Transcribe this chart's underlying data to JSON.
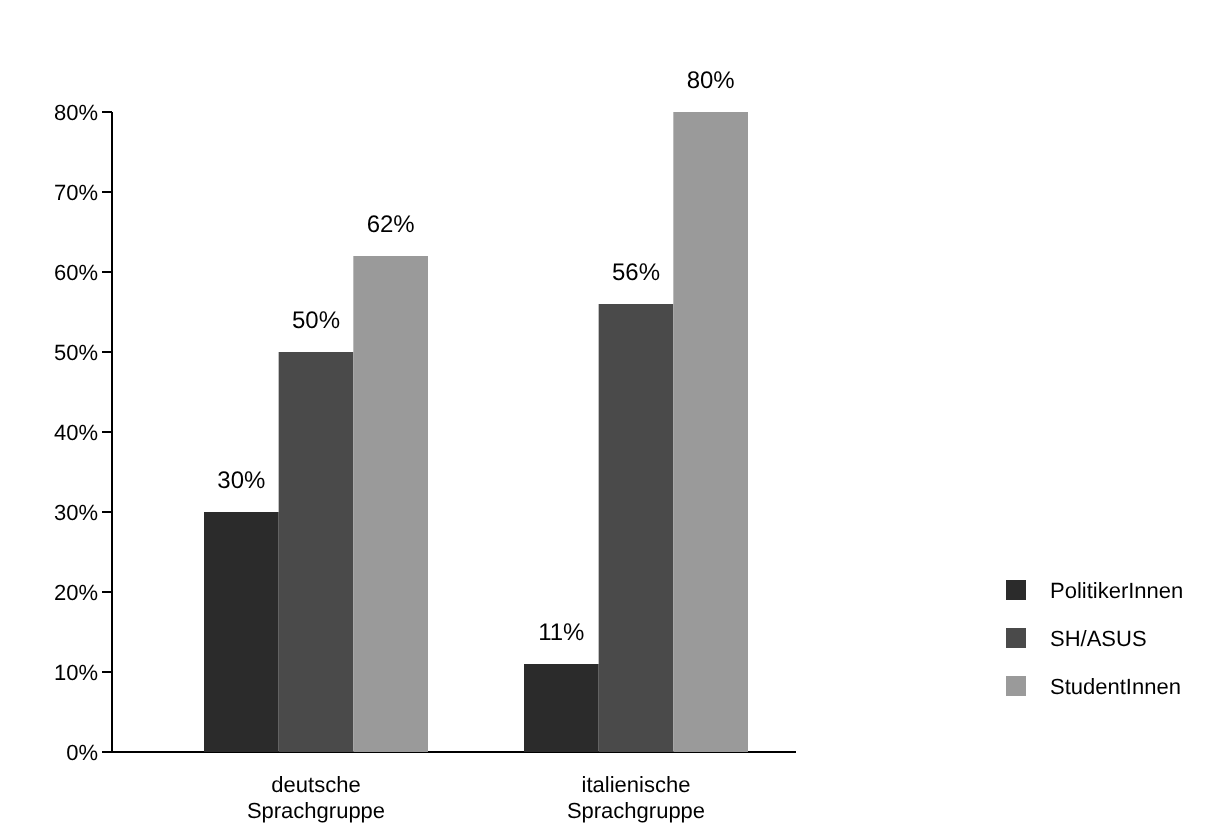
{
  "chart_data": {
    "type": "bar",
    "categories": [
      "deutsche Sprachgruppe",
      "italienische Sprachgruppe"
    ],
    "series": [
      {
        "name": "PolitikerInnen",
        "color": "#2b2b2b",
        "values": [
          30,
          11
        ]
      },
      {
        "name": "SH/ASUS",
        "color": "#4a4a4a",
        "values": [
          50,
          56
        ]
      },
      {
        "name": "StudentInnen",
        "color": "#9a9a9a",
        "values": [
          62,
          80
        ]
      }
    ],
    "value_labels": [
      [
        "30%",
        "11%"
      ],
      [
        "50%",
        "56%"
      ],
      [
        "62%",
        "80%"
      ]
    ],
    "ylim": [
      0,
      80
    ],
    "yticks": [
      {
        "value": 0,
        "label": "0%"
      },
      {
        "value": 10,
        "label": "10%"
      },
      {
        "value": 20,
        "label": "20%"
      },
      {
        "value": 30,
        "label": "30%"
      },
      {
        "value": 40,
        "label": "40%"
      },
      {
        "value": 50,
        "label": "50%"
      },
      {
        "value": 60,
        "label": "60%"
      },
      {
        "value": 70,
        "label": "70%"
      },
      {
        "value": 80,
        "label": "80%"
      }
    ],
    "grid": false,
    "legend": "right"
  }
}
